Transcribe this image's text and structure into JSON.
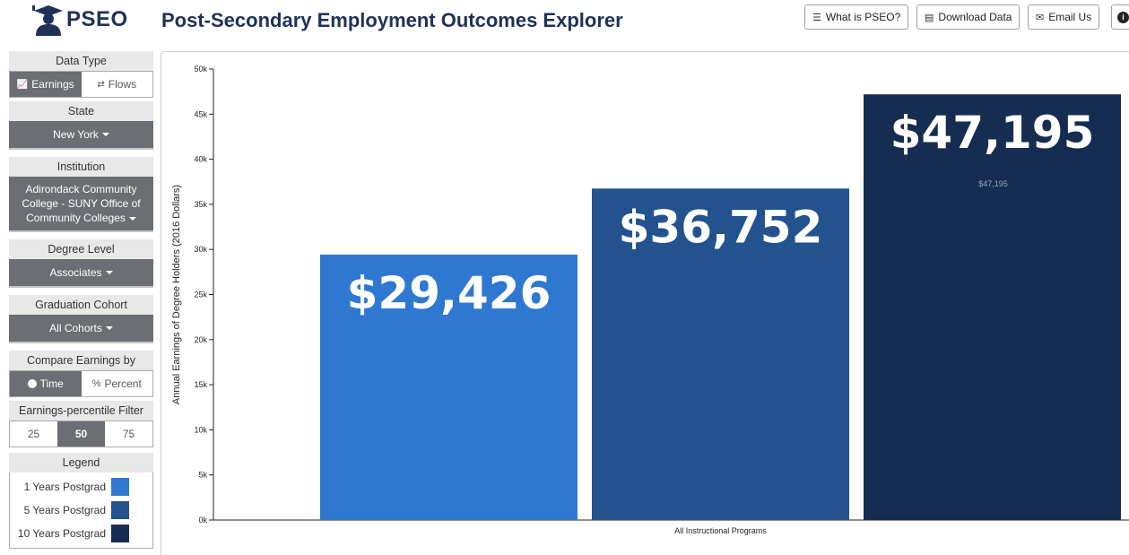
{
  "header": {
    "logo_text": "PSEO",
    "title": "Post-Secondary Employment Outcomes Explorer",
    "buttons": [
      {
        "label": "What is PSEO?",
        "icon": "list-icon"
      },
      {
        "label": "Download Data",
        "icon": "file-icon"
      },
      {
        "label": "Email Us",
        "icon": "envelope-icon"
      },
      {
        "label": "",
        "icon": "info-icon"
      }
    ]
  },
  "sidebar": {
    "data_type": {
      "title": "Data Type",
      "options": [
        "Earnings",
        "Flows"
      ],
      "selected": "Earnings"
    },
    "state": {
      "title": "State",
      "value": "New York"
    },
    "institution": {
      "title": "Institution",
      "value": "Adirondack Community College - SUNY Office of Community Colleges"
    },
    "degree_level": {
      "title": "Degree Level",
      "value": "Associates"
    },
    "cohort": {
      "title": "Graduation Cohort",
      "value": "All Cohorts"
    },
    "compare": {
      "title": "Compare Earnings by",
      "options": [
        "Time",
        "Percent"
      ],
      "selected": "Time"
    },
    "percentile": {
      "title": "Earnings-percentile Filter",
      "options": [
        "25",
        "50",
        "75"
      ],
      "selected": "50"
    },
    "legend": {
      "title": "Legend",
      "items": [
        {
          "label": "1 Years Postgrad",
          "color": "#2f78d2"
        },
        {
          "label": "5 Years Postgrad",
          "color": "#23528f"
        },
        {
          "label": "10 Years Postgrad",
          "color": "#162d52"
        }
      ]
    }
  },
  "chart_data": {
    "type": "bar",
    "categories": [
      "All Instructional Programs"
    ],
    "series": [
      {
        "name": "1 Years Postgrad",
        "values": [
          29426
        ],
        "label": "$29,426",
        "color": "#2f78d2"
      },
      {
        "name": "5 Years Postgrad",
        "values": [
          36752
        ],
        "label": "$36,752",
        "color": "#23528f"
      },
      {
        "name": "10 Years Postgrad",
        "values": [
          47195
        ],
        "label": "$47,195",
        "small_label": "$47,195",
        "color": "#162d52"
      }
    ],
    "ylabel": "Annual Earnings of Degree Holders (2016 Dollars)",
    "ylim": [
      0,
      50000
    ],
    "yticks": [
      {
        "value": 0,
        "label": "0k"
      },
      {
        "value": 5000,
        "label": "5k"
      },
      {
        "value": 10000,
        "label": "10k"
      },
      {
        "value": 15000,
        "label": "15k"
      },
      {
        "value": 20000,
        "label": "20k"
      },
      {
        "value": 25000,
        "label": "25k"
      },
      {
        "value": 30000,
        "label": "30k"
      },
      {
        "value": 35000,
        "label": "35k"
      },
      {
        "value": 40000,
        "label": "40k"
      },
      {
        "value": 45000,
        "label": "45k"
      },
      {
        "value": 50000,
        "label": "50k"
      }
    ],
    "grid": false,
    "legend_placement": "left-sidebar"
  }
}
